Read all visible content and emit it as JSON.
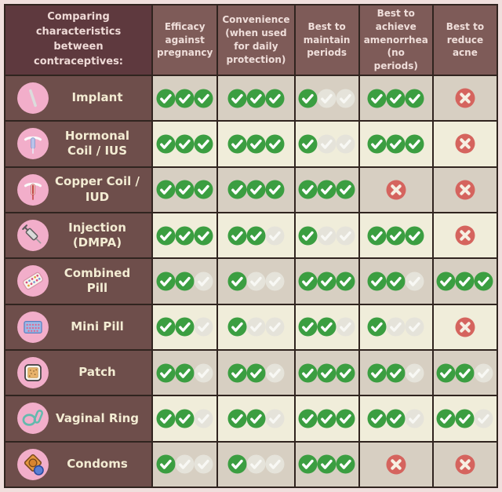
{
  "table": {
    "corner_header": "Comparing characteristics between contraceptives:",
    "columns": [
      "Efficacy against pregnancy",
      "Convenience (when used for daily protection)",
      "Best to maintain periods",
      "Best to achieve amenorrhea (no periods)",
      "Best to reduce acne"
    ],
    "rating_scale_max": 3,
    "rating_legend": {
      "check": "positive point (green check)",
      "faded": "empty point (faded check)",
      "x": "not suitable (red cross)"
    },
    "rows": [
      {
        "label": "Implant",
        "icon": "implant-icon",
        "ratings": [
          3,
          3,
          1,
          3,
          "x"
        ]
      },
      {
        "label": "Hormonal Coil / IUS",
        "icon": "hormonal-coil-icon",
        "ratings": [
          3,
          3,
          1,
          3,
          "x"
        ]
      },
      {
        "label": "Copper Coil / IUD",
        "icon": "copper-coil-icon",
        "ratings": [
          3,
          3,
          3,
          "x",
          "x"
        ]
      },
      {
        "label": "Injection (DMPA)",
        "icon": "injection-icon",
        "ratings": [
          3,
          2,
          1,
          3,
          "x"
        ]
      },
      {
        "label": "Combined Pill",
        "icon": "combined-pill-icon",
        "ratings": [
          2,
          1,
          3,
          2,
          3
        ]
      },
      {
        "label": "Mini Pill",
        "icon": "mini-pill-icon",
        "ratings": [
          2,
          1,
          2,
          1,
          "x"
        ]
      },
      {
        "label": "Patch",
        "icon": "patch-icon",
        "ratings": [
          2,
          2,
          3,
          2,
          2
        ]
      },
      {
        "label": "Vaginal Ring",
        "icon": "vaginal-ring-icon",
        "ratings": [
          2,
          2,
          3,
          2,
          2
        ]
      },
      {
        "label": "Condoms",
        "icon": "condoms-icon",
        "ratings": [
          1,
          1,
          3,
          "x",
          "x"
        ]
      }
    ]
  },
  "colors": {
    "frame": "#f0dfdd",
    "grid_lines": "#30241f",
    "corner_bg": "#5e393e",
    "header_bg": "#7e5b58",
    "header_text": "#efdeda",
    "row_label_bg": "#6e4e4b",
    "row_label_text": "#f3ecd3",
    "row_cream": "#f0edda",
    "row_beige": "#d7cfc2",
    "check_green": "#3b9e41",
    "check_faded": "#e5e3da",
    "cross_red": "#d5645e",
    "icon_circle_pink": "#f2aeca"
  }
}
